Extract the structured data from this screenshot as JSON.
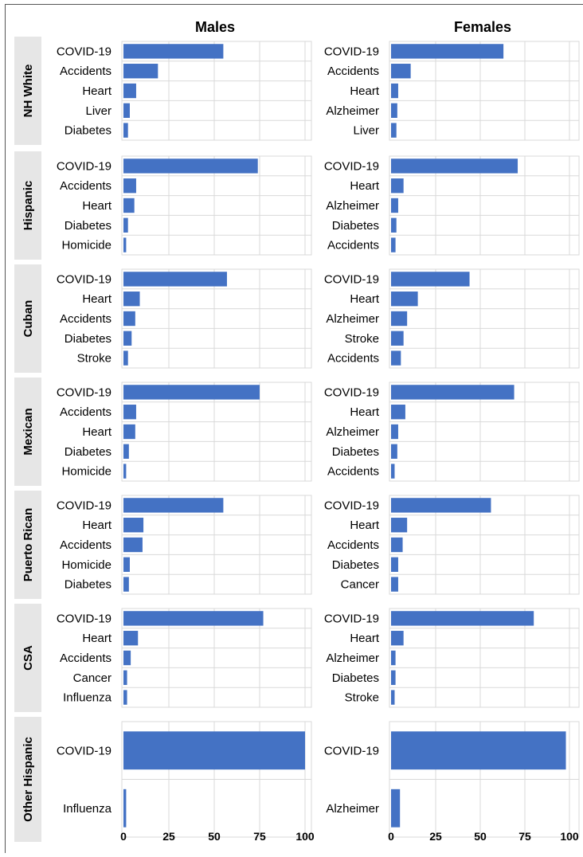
{
  "chart_data": {
    "type": "bar",
    "orientation": "horizontal",
    "columns": [
      "Males",
      "Females"
    ],
    "xlim": [
      0,
      100
    ],
    "xticks": [
      "0",
      "25",
      "50",
      "75",
      "100"
    ],
    "grid": true,
    "colors": {
      "bar": "#4472c4",
      "row_label_bg": "#e6e6e6",
      "grid": "#d9d9d9"
    },
    "groups": [
      {
        "name": "NH White",
        "males": {
          "categories": [
            "COVID-19",
            "Accidents",
            "Heart",
            "Liver",
            "Diabetes"
          ],
          "values": [
            55,
            19,
            7,
            3.5,
            2.5
          ]
        },
        "females": {
          "categories": [
            "COVID-19",
            "Accidents",
            "Heart",
            "Alzheimer",
            "Liver"
          ],
          "values": [
            63,
            11,
            4,
            3.5,
            3
          ]
        }
      },
      {
        "name": "Hispanic",
        "males": {
          "categories": [
            "COVID-19",
            "Accidents",
            "Heart",
            "Diabetes",
            "Homicide"
          ],
          "values": [
            74,
            7,
            6,
            2.5,
            1.5
          ]
        },
        "females": {
          "categories": [
            "COVID-19",
            "Heart",
            "Alzheimer",
            "Diabetes",
            "Accidents"
          ],
          "values": [
            71,
            7,
            4,
            3,
            2.5
          ]
        }
      },
      {
        "name": "Cuban",
        "males": {
          "categories": [
            "COVID-19",
            "Heart",
            "Accidents",
            "Diabetes",
            "Stroke"
          ],
          "values": [
            57,
            9,
            6.5,
            4.5,
            2.5
          ]
        },
        "females": {
          "categories": [
            "COVID-19",
            "Heart",
            "Alzheimer",
            "Stroke",
            "Accidents"
          ],
          "values": [
            44,
            15,
            9,
            7,
            5.5
          ]
        }
      },
      {
        "name": "Mexican",
        "males": {
          "categories": [
            "COVID-19",
            "Accidents",
            "Heart",
            "Diabetes",
            "Homicide"
          ],
          "values": [
            75,
            7,
            6.5,
            3,
            1.5
          ]
        },
        "females": {
          "categories": [
            "COVID-19",
            "Heart",
            "Alzheimer",
            "Diabetes",
            "Accidents"
          ],
          "values": [
            69,
            8,
            4,
            3.5,
            2
          ]
        }
      },
      {
        "name": "Puerto Rican",
        "males": {
          "categories": [
            "COVID-19",
            "Heart",
            "Accidents",
            "Homicide",
            "Diabetes"
          ],
          "values": [
            55,
            11,
            10.5,
            3.5,
            3
          ]
        },
        "females": {
          "categories": [
            "COVID-19",
            "Heart",
            "Accidents",
            "Diabetes",
            "Cancer"
          ],
          "values": [
            56,
            9,
            6.5,
            4,
            4
          ]
        }
      },
      {
        "name": "CSA",
        "males": {
          "categories": [
            "COVID-19",
            "Heart",
            "Accidents",
            "Cancer",
            "Influenza"
          ],
          "values": [
            77,
            8,
            4,
            2,
            2
          ]
        },
        "females": {
          "categories": [
            "COVID-19",
            "Heart",
            "Alzheimer",
            "Diabetes",
            "Stroke"
          ],
          "values": [
            80,
            7,
            2.5,
            2.5,
            2
          ]
        }
      },
      {
        "name": "Other Hispanic",
        "males": {
          "categories": [
            "COVID-19",
            "Influenza"
          ],
          "values": [
            100,
            1.5
          ]
        },
        "females": {
          "categories": [
            "COVID-19",
            "Alzheimer"
          ],
          "values": [
            98,
            5
          ]
        }
      }
    ]
  }
}
